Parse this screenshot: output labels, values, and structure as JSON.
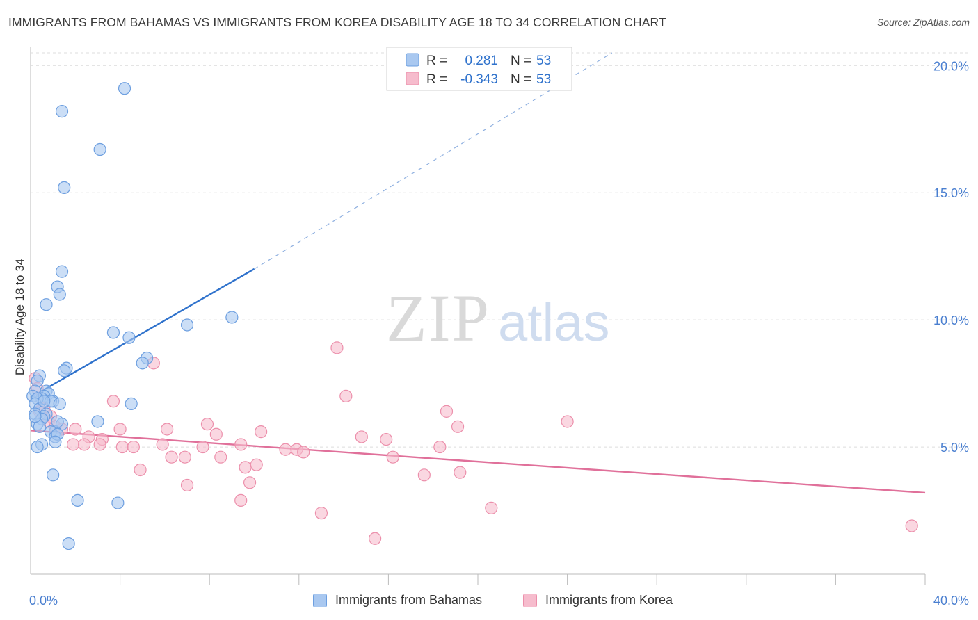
{
  "header": {
    "title": "IMMIGRANTS FROM BAHAMAS VS IMMIGRANTS FROM KOREA DISABILITY AGE 18 TO 34 CORRELATION CHART",
    "source": "Source: ZipAtlas.com"
  },
  "watermark": {
    "zip": "ZIP",
    "atlas": "atlas"
  },
  "legend": {
    "r_label": "R =",
    "n_label": "N =",
    "series": [
      {
        "r": "0.281",
        "n": "53"
      },
      {
        "r": "-0.343",
        "n": "53"
      }
    ]
  },
  "colors": {
    "bahamas_fill": "#a9c8f0",
    "bahamas_stroke": "#6d9fe0",
    "bahamas_line": "#2f72cc",
    "korea_fill": "#f6bccd",
    "korea_stroke": "#ec8fab",
    "korea_line": "#e0709a",
    "tick_text": "#4a7fd0",
    "grid": "#dcdcdc"
  },
  "chart_data": {
    "type": "scatter",
    "title": "IMMIGRANTS FROM BAHAMAS VS IMMIGRANTS FROM KOREA DISABILITY AGE 18 TO 34 CORRELATION CHART",
    "xlabel": "",
    "ylabel": "Disability Age 18 to 34",
    "xlim": [
      0,
      40
    ],
    "ylim": [
      0,
      20.5
    ],
    "x_tick_labels": [
      "0.0%",
      "40.0%"
    ],
    "y_ticks": [
      5,
      10,
      15,
      20
    ],
    "y_tick_labels": [
      "5.0%",
      "10.0%",
      "15.0%",
      "20.0%"
    ],
    "grid": true,
    "legend_position": "top-center and bottom",
    "series": [
      {
        "name": "Immigrants from Bahamas",
        "r": 0.281,
        "n": 53,
        "points": [
          [
            4.2,
            19.1
          ],
          [
            1.4,
            18.2
          ],
          [
            3.1,
            16.7
          ],
          [
            1.5,
            15.2
          ],
          [
            1.4,
            11.9
          ],
          [
            1.2,
            11.3
          ],
          [
            1.3,
            11.0
          ],
          [
            0.7,
            10.6
          ],
          [
            9.0,
            10.1
          ],
          [
            7.0,
            9.8
          ],
          [
            3.7,
            9.5
          ],
          [
            4.4,
            9.3
          ],
          [
            5.2,
            8.5
          ],
          [
            5.0,
            8.3
          ],
          [
            1.6,
            8.1
          ],
          [
            1.5,
            8.0
          ],
          [
            0.4,
            7.8
          ],
          [
            0.3,
            7.6
          ],
          [
            0.2,
            7.2
          ],
          [
            0.7,
            7.2
          ],
          [
            0.8,
            7.1
          ],
          [
            0.6,
            7.0
          ],
          [
            0.5,
            6.9
          ],
          [
            0.1,
            7.0
          ],
          [
            0.3,
            6.9
          ],
          [
            1.0,
            6.8
          ],
          [
            0.9,
            6.8
          ],
          [
            0.2,
            6.7
          ],
          [
            1.3,
            6.7
          ],
          [
            4.5,
            6.7
          ],
          [
            0.4,
            6.5
          ],
          [
            0.7,
            6.3
          ],
          [
            0.6,
            6.2
          ],
          [
            0.2,
            6.3
          ],
          [
            0.5,
            6.1
          ],
          [
            3.0,
            6.0
          ],
          [
            1.4,
            5.9
          ],
          [
            0.3,
            5.9
          ],
          [
            0.4,
            5.8
          ],
          [
            1.1,
            5.6
          ],
          [
            0.9,
            5.6
          ],
          [
            1.1,
            5.4
          ],
          [
            1.2,
            5.5
          ],
          [
            0.5,
            5.1
          ],
          [
            1.1,
            5.2
          ],
          [
            0.3,
            5.0
          ],
          [
            1.0,
            3.9
          ],
          [
            2.1,
            2.9
          ],
          [
            3.9,
            2.8
          ],
          [
            1.7,
            1.2
          ],
          [
            0.6,
            6.8
          ],
          [
            0.2,
            6.2
          ],
          [
            1.2,
            6.0
          ]
        ]
      },
      {
        "name": "Immigrants from Korea",
        "r": -0.343,
        "n": 53,
        "points": [
          [
            0.2,
            7.7
          ],
          [
            0.3,
            7.3
          ],
          [
            0.6,
            6.5
          ],
          [
            0.9,
            6.2
          ],
          [
            0.4,
            6.4
          ],
          [
            0.8,
            6.0
          ],
          [
            1.1,
            5.8
          ],
          [
            1.4,
            5.7
          ],
          [
            2.0,
            5.7
          ],
          [
            2.6,
            5.4
          ],
          [
            3.2,
            5.3
          ],
          [
            4.0,
            5.7
          ],
          [
            5.5,
            8.3
          ],
          [
            6.1,
            5.7
          ],
          [
            3.7,
            6.8
          ],
          [
            7.9,
            5.9
          ],
          [
            8.3,
            5.5
          ],
          [
            9.4,
            5.1
          ],
          [
            10.3,
            5.6
          ],
          [
            11.4,
            4.9
          ],
          [
            11.9,
            4.9
          ],
          [
            12.2,
            4.8
          ],
          [
            13.7,
            8.9
          ],
          [
            14.1,
            7.0
          ],
          [
            14.8,
            5.4
          ],
          [
            15.9,
            5.3
          ],
          [
            16.2,
            4.6
          ],
          [
            18.6,
            6.4
          ],
          [
            18.3,
            5.0
          ],
          [
            19.1,
            5.8
          ],
          [
            19.2,
            4.0
          ],
          [
            17.6,
            3.9
          ],
          [
            20.6,
            2.6
          ],
          [
            24.0,
            6.0
          ],
          [
            13.0,
            2.4
          ],
          [
            15.4,
            1.4
          ],
          [
            39.4,
            1.9
          ],
          [
            1.9,
            5.1
          ],
          [
            2.4,
            5.1
          ],
          [
            3.1,
            5.1
          ],
          [
            4.1,
            5.0
          ],
          [
            4.6,
            5.0
          ],
          [
            5.9,
            5.1
          ],
          [
            6.3,
            4.6
          ],
          [
            6.9,
            4.6
          ],
          [
            7.7,
            5.0
          ],
          [
            8.5,
            4.6
          ],
          [
            9.6,
            4.2
          ],
          [
            9.8,
            3.6
          ],
          [
            10.1,
            4.3
          ],
          [
            4.9,
            4.1
          ],
          [
            7.0,
            3.5
          ],
          [
            9.4,
            2.9
          ]
        ]
      }
    ],
    "trend_lines": [
      {
        "series": "Immigrants from Bahamas",
        "x": [
          0,
          10.0
        ],
        "y": [
          6.95,
          12.0
        ],
        "dashed_extension_to": [
          26.0,
          20.5
        ]
      },
      {
        "series": "Immigrants from Korea",
        "x": [
          0,
          40
        ],
        "y": [
          5.65,
          3.2
        ]
      }
    ]
  },
  "bottom_legend": {
    "items": [
      "Immigrants from Bahamas",
      "Immigrants from Korea"
    ]
  }
}
